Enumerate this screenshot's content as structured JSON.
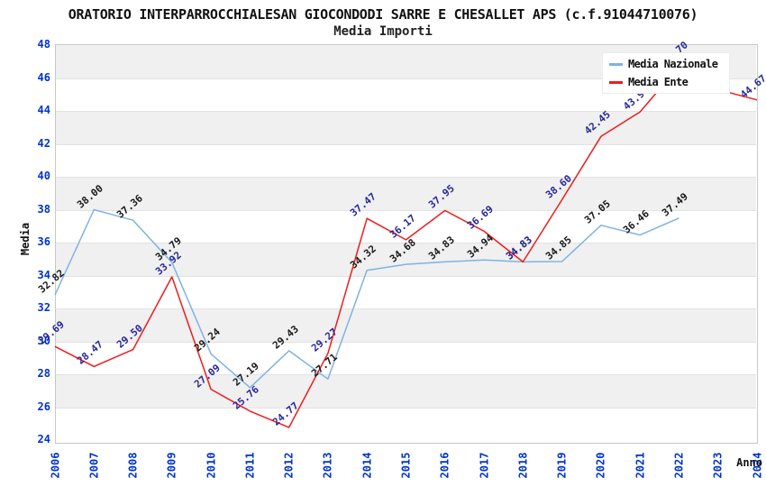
{
  "header": {
    "title": "ORATORIO INTERPARROCCHIALESAN GIOCONDODI SARRE E CHESALLET APS (c.f.91044710076)",
    "subtitle": "Media Importi"
  },
  "legend": {
    "items": [
      {
        "label": "Media Nazionale"
      },
      {
        "label": "Media Ente"
      }
    ]
  },
  "colors": {
    "nazionale_line": "#7FB2E5",
    "ente_line": "#EE1C1C",
    "tick_text": "#0033CC",
    "nazionale_point_label": "#1A1A1A",
    "ente_point_label": "#28289B"
  },
  "chart_data": {
    "type": "line",
    "title": "ORATORIO INTERPARROCCHIALESAN GIOCONDODI SARRE E CHESALLET APS (c.f.91044710076)",
    "subtitle": "Media Importi",
    "xlabel": "Anno",
    "ylabel": "Media",
    "ylim": [
      24,
      48
    ],
    "ytick_step": 2,
    "yticks": [
      24,
      26,
      28,
      30,
      32,
      34,
      36,
      38,
      40,
      42,
      44,
      46,
      48
    ],
    "categories": [
      "2006",
      "2007",
      "2008",
      "2009",
      "2010",
      "2011",
      "2012",
      "2013",
      "2014",
      "2015",
      "2016",
      "2017",
      "2018",
      "2019",
      "2020",
      "2021",
      "2022",
      "2023",
      "2024"
    ],
    "grid": "horizontal-bands",
    "legend_position": "top-right",
    "series": [
      {
        "name": "Media Nazionale",
        "color": "#7FB2E5",
        "label_color": "#1A1A1A",
        "years": [
          2006,
          2007,
          2008,
          2009,
          2010,
          2011,
          2012,
          2013,
          2014,
          2015,
          2016,
          2017,
          2018,
          2019,
          2020,
          2021,
          2022
        ],
        "values": [
          32.82,
          38.0,
          37.36,
          34.79,
          29.24,
          27.19,
          29.43,
          27.71,
          34.32,
          34.68,
          34.83,
          34.94,
          34.83,
          34.85,
          37.05,
          36.46,
          37.49
        ]
      },
      {
        "name": "Media Ente",
        "color": "#EE1C1C",
        "label_color": "#28289B",
        "years": [
          2006,
          2007,
          2008,
          2009,
          2010,
          2011,
          2012,
          2013,
          2014,
          2015,
          2016,
          2017,
          2018,
          2019,
          2020,
          2021,
          2022,
          2023,
          2024
        ],
        "values": [
          29.69,
          28.47,
          29.5,
          33.92,
          27.09,
          25.76,
          24.77,
          29.27,
          37.47,
          36.17,
          37.95,
          36.69,
          34.83,
          38.6,
          42.45,
          43.94,
          46.7,
          45.3,
          44.67
        ],
        "labels_hidden_behind_legend_years": [
          2022,
          2023
        ],
        "estimated_value_years": [
          2022,
          2023
        ]
      }
    ]
  }
}
